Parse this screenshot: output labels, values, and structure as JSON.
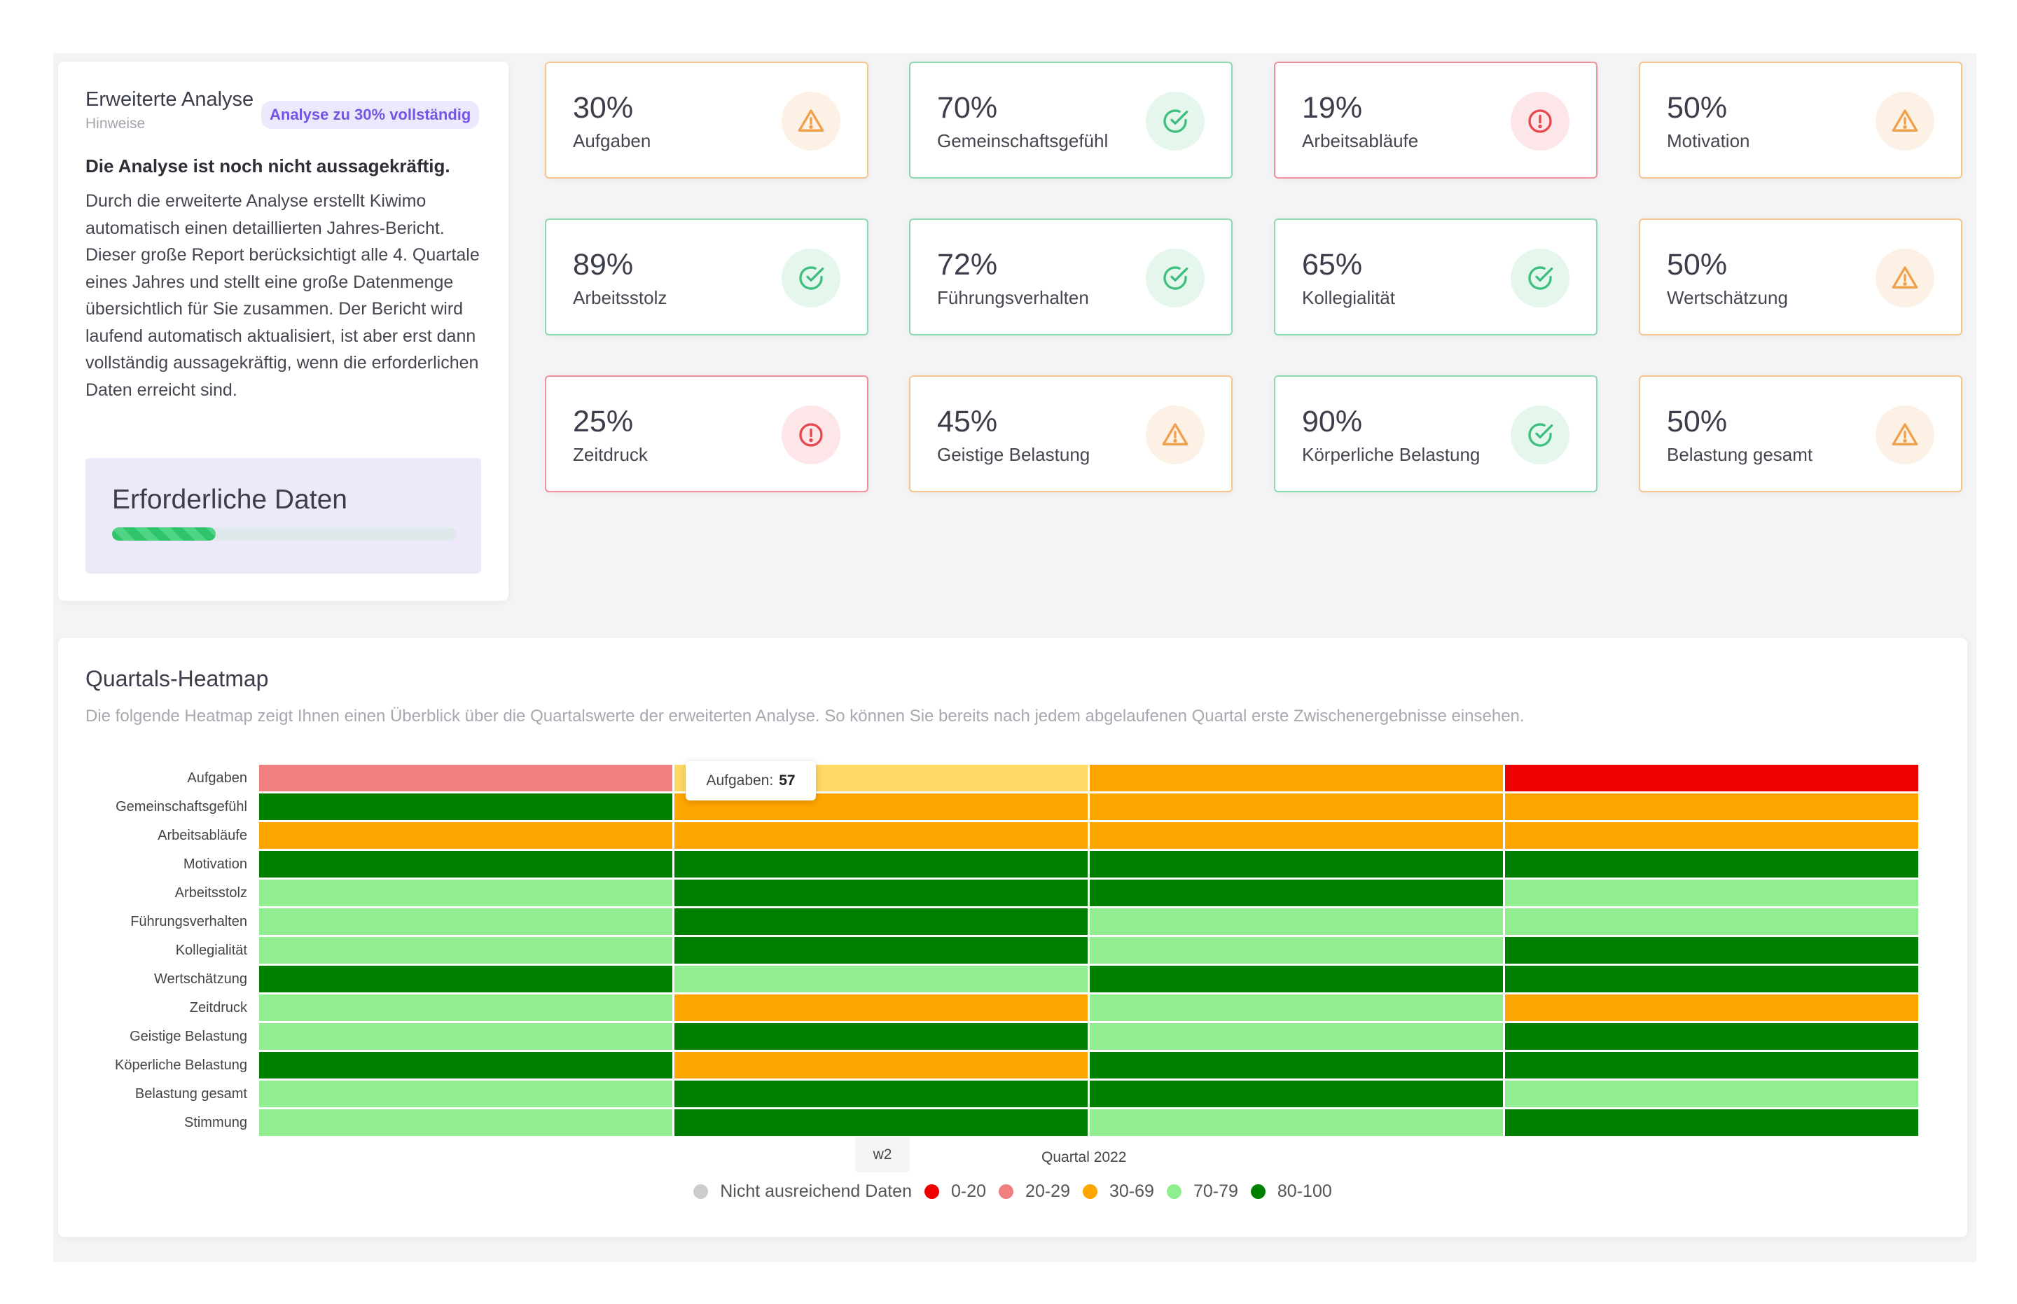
{
  "analysis": {
    "title": "Erweiterte Analyse",
    "subtitle": "Hinweise",
    "badge": "Analyse zu 30% vollständig",
    "heading": "Die Analyse ist noch nicht aussagekräftig.",
    "body": "Durch die erweiterte Analyse erstellt Kiwimo automatisch einen detaillierten Jahres-Bericht. Dieser große Report berücksichtigt alle 4. Quartale eines Jahres und stellt eine große Datenmenge übersichtlich für Sie zusammen. Der Bericht wird laufend automatisch aktualisiert, ist aber erst dann vollständig aussagekräftig, wenn die erforderlichen Daten erreicht sind.",
    "required_title": "Erforderliche Daten",
    "required_progress": 0.3
  },
  "stats": [
    {
      "value": "30%",
      "label": "Aufgaben",
      "status": "warn",
      "icon": "warning-triangle-icon"
    },
    {
      "value": "70%",
      "label": "Gemeinschaftsgefühl",
      "status": "ok",
      "icon": "check-circle-icon"
    },
    {
      "value": "19%",
      "label": "Arbeitsabläufe",
      "status": "err",
      "icon": "alert-circle-icon"
    },
    {
      "value": "50%",
      "label": "Motivation",
      "status": "warn",
      "icon": "warning-triangle-icon"
    },
    {
      "value": "89%",
      "label": "Arbeitsstolz",
      "status": "ok",
      "icon": "check-circle-icon"
    },
    {
      "value": "72%",
      "label": "Führungsverhalten",
      "status": "ok",
      "icon": "check-circle-icon"
    },
    {
      "value": "65%",
      "label": "Kollegialität",
      "status": "ok",
      "icon": "check-circle-icon"
    },
    {
      "value": "50%",
      "label": "Wertschätzung",
      "status": "warn",
      "icon": "warning-triangle-icon"
    },
    {
      "value": "25%",
      "label": "Zeitdruck",
      "status": "err",
      "icon": "alert-circle-icon"
    },
    {
      "value": "45%",
      "label": "Geistige Belastung",
      "status": "warn",
      "icon": "warning-triangle-icon"
    },
    {
      "value": "90%",
      "label": "Körperliche Belastung",
      "status": "ok",
      "icon": "check-circle-icon"
    },
    {
      "value": "50%",
      "label": "Belastung gesamt",
      "status": "warn",
      "icon": "warning-triangle-icon"
    }
  ],
  "status_colors": {
    "warn": "#f0a04b",
    "ok": "#3fbf7f",
    "err": "#e5484d"
  },
  "heatmap": {
    "title": "Quartals-Heatmap",
    "description": "Die folgende Heatmap zeigt Ihnen einen Überblick über die Quartalswerte der erweiterten Analyse. So können Sie bereits nach jedem abgelaufenen Quartal erste Zwischenergebnisse einsehen.",
    "tooltip_label": "Aufgaben:",
    "tooltip_value": "57",
    "xtick_label": "w2",
    "xaxis_label": "Quartal 2022",
    "legend": [
      {
        "label": "Nicht ausreichend Daten",
        "color": "#cccccc"
      },
      {
        "label": "0-20",
        "color": "#ee0000"
      },
      {
        "label": "20-29",
        "color": "#f08080"
      },
      {
        "label": "30-69",
        "color": "#ffa500"
      },
      {
        "label": "70-79",
        "color": "#90ee90"
      },
      {
        "label": "80-100",
        "color": "#008000"
      }
    ]
  },
  "chart_data": {
    "type": "heatmap",
    "title": "Quartals-Heatmap",
    "xlabel": "Quartal 2022",
    "rows": [
      "Aufgaben",
      "Gemeinschaftsgefühl",
      "Arbeitsabläufe",
      "Motivation",
      "Arbeitsstolz",
      "Führungsverhalten",
      "Kollegialität",
      "Wertschätzung",
      "Zeitdruck",
      "Geistige Belastung",
      "Köperliche Belastung",
      "Belastung gesamt",
      "Stimmung"
    ],
    "columns": 4,
    "values": [
      [
        "20-29",
        "highlight",
        "30-69",
        "0-20"
      ],
      [
        "80-100",
        "30-69",
        "30-69",
        "30-69"
      ],
      [
        "30-69",
        "30-69",
        "30-69",
        "30-69"
      ],
      [
        "80-100",
        "80-100",
        "80-100",
        "80-100"
      ],
      [
        "70-79",
        "80-100",
        "80-100",
        "70-79"
      ],
      [
        "70-79",
        "80-100",
        "70-79",
        "70-79"
      ],
      [
        "70-79",
        "80-100",
        "70-79",
        "80-100"
      ],
      [
        "80-100",
        "70-79",
        "80-100",
        "80-100"
      ],
      [
        "70-79",
        "30-69",
        "70-79",
        "30-69"
      ],
      [
        "70-79",
        "80-100",
        "70-79",
        "80-100"
      ],
      [
        "80-100",
        "30-69",
        "80-100",
        "80-100"
      ],
      [
        "70-79",
        "80-100",
        "80-100",
        "70-79"
      ],
      [
        "70-79",
        "80-100",
        "70-79",
        "80-100"
      ]
    ],
    "tooltip": {
      "row": "Aufgaben",
      "column": 2,
      "value": 57
    },
    "category_colors": {
      "0-20": "#ee0000",
      "20-29": "#f08080",
      "30-69": "#ffa500",
      "70-79": "#90ee90",
      "80-100": "#008000",
      "highlight": "#ffd966"
    }
  }
}
